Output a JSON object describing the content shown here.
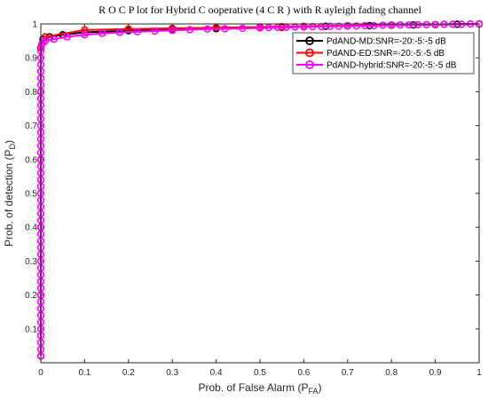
{
  "chart_data": {
    "type": "line",
    "title": "R O C  P lot for Hybrid C ooperative  (4 C R ) with R ayleigh  fading channel",
    "xlabel": "Prob. of False Alarm (P",
    "xlabel_sub": "FA",
    "xlabel_end": ")",
    "ylabel": "Prob. of detection (P",
    "ylabel_sub": "D",
    "ylabel_end": ")",
    "xlim": [
      0,
      1
    ],
    "ylim": [
      0,
      1
    ],
    "xticks": [
      "0",
      "0.1",
      "0.2",
      "0.3",
      "0.4",
      "0.5",
      "0.6",
      "0.7",
      "0.8",
      "0.9",
      "1"
    ],
    "yticks": [
      "0.1",
      "0.2",
      "0.3",
      "0.4",
      "0.5",
      "0.6",
      "0.7",
      "0.8",
      "0.9",
      "1"
    ],
    "legend_position": "top-right",
    "series": [
      {
        "name": "PdAND-MD:SNR=-20:-5:-5 dB",
        "color": "#000000",
        "marker": "circle",
        "x": [
          0,
          0,
          0,
          0,
          0,
          0,
          0.005,
          0.02,
          0.05,
          0.1,
          0.2,
          0.3,
          0.4,
          0.5,
          0.55,
          0.6,
          0.65,
          0.7,
          0.75,
          0.8,
          0.85,
          0.9,
          0.95,
          1.0
        ],
        "y": [
          0.02,
          0.2,
          0.4,
          0.6,
          0.8,
          0.93,
          0.955,
          0.962,
          0.968,
          0.975,
          0.98,
          0.983,
          0.986,
          0.989,
          0.99,
          0.992,
          0.993,
          0.994,
          0.995,
          0.996,
          0.997,
          0.998,
          0.999,
          1.0
        ]
      },
      {
        "name": "PdAND-ED:SNR=-20:-5:-5 dB",
        "color": "#ff0000",
        "marker": "circle",
        "x": [
          0,
          0,
          0,
          0,
          0,
          0,
          0.01,
          0.1,
          0.2,
          0.3,
          0.4,
          0.5,
          0.55,
          0.6,
          0.7,
          0.8,
          0.9,
          1.0
        ],
        "y": [
          0.02,
          0.2,
          0.4,
          0.6,
          0.8,
          0.93,
          0.962,
          0.982,
          0.985,
          0.987,
          0.989,
          0.991,
          0.992,
          0.993,
          0.995,
          0.997,
          0.998,
          1.0
        ]
      },
      {
        "name": "PdAND-hybrid:SNR=-20:-5:-5 dB",
        "color": "#ff00ff",
        "marker": "circle",
        "x": [
          0,
          0,
          0,
          0,
          0,
          0,
          0,
          0,
          0,
          0,
          0,
          0,
          0,
          0,
          0,
          0,
          0,
          0,
          0,
          0,
          0,
          0,
          0,
          0,
          0,
          0,
          0,
          0,
          0,
          0,
          0,
          0,
          0,
          0,
          0,
          0,
          0,
          0,
          0,
          0,
          0,
          0,
          0,
          0,
          0,
          0,
          0.002,
          0.005,
          0.01,
          0.03,
          0.06,
          0.1,
          0.14,
          0.18,
          0.22,
          0.26,
          0.3,
          0.34,
          0.38,
          0.42,
          0.46,
          0.5,
          0.52,
          0.54,
          0.56,
          0.58,
          0.6,
          0.62,
          0.64,
          0.66,
          0.68,
          0.7,
          0.72,
          0.74,
          0.76,
          0.78,
          0.8,
          0.82,
          0.84,
          0.86,
          0.88,
          0.9,
          0.92,
          0.94,
          0.96,
          0.98,
          1.0
        ],
        "y": [
          0.02,
          0.04,
          0.06,
          0.08,
          0.1,
          0.12,
          0.14,
          0.16,
          0.18,
          0.2,
          0.22,
          0.24,
          0.26,
          0.28,
          0.3,
          0.32,
          0.34,
          0.36,
          0.38,
          0.4,
          0.42,
          0.44,
          0.46,
          0.48,
          0.5,
          0.52,
          0.54,
          0.56,
          0.58,
          0.6,
          0.62,
          0.64,
          0.66,
          0.68,
          0.7,
          0.72,
          0.74,
          0.76,
          0.78,
          0.8,
          0.82,
          0.84,
          0.86,
          0.88,
          0.9,
          0.92,
          0.94,
          0.945,
          0.95,
          0.955,
          0.962,
          0.968,
          0.972,
          0.975,
          0.977,
          0.979,
          0.981,
          0.983,
          0.985,
          0.986,
          0.987,
          0.988,
          0.989,
          0.99,
          0.99,
          0.991,
          0.991,
          0.992,
          0.992,
          0.993,
          0.993,
          0.994,
          0.994,
          0.995,
          0.995,
          0.996,
          0.996,
          0.997,
          0.997,
          0.998,
          0.998,
          0.998,
          0.999,
          0.999,
          0.999,
          1.0,
          1.0
        ]
      }
    ]
  }
}
